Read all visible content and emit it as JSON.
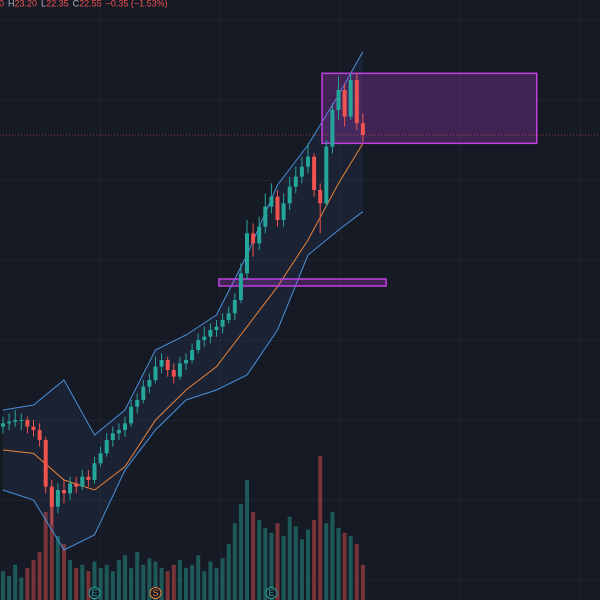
{
  "chart_data": {
    "type": "candlestick",
    "header": {
      "open_fragment": "0",
      "items": [
        {
          "label": "H",
          "value": "23.20"
        },
        {
          "label": "L",
          "value": "22.35"
        },
        {
          "label": "C",
          "value": "22.55"
        }
      ],
      "change": "−0.35 (−1.53%)"
    },
    "up_color": "#26a69a",
    "down_color": "#ef5350",
    "ylim": [
      8.6,
      26.6
    ],
    "ohlc": [
      [
        13.8,
        14.1,
        13.6,
        13.9
      ],
      [
        13.9,
        14.2,
        13.7,
        13.95
      ],
      [
        13.95,
        14.3,
        13.8,
        14.0
      ],
      [
        14.0,
        14.2,
        13.7,
        14.0
      ],
      [
        14.0,
        14.1,
        13.6,
        13.8
      ],
      [
        13.8,
        14.0,
        13.5,
        13.7
      ],
      [
        13.7,
        13.9,
        13.2,
        13.4
      ],
      [
        13.4,
        13.5,
        11.8,
        12.0
      ],
      [
        12.0,
        12.2,
        10.85,
        11.4
      ],
      [
        11.4,
        12.1,
        11.2,
        11.9
      ],
      [
        11.9,
        12.2,
        11.5,
        11.8
      ],
      [
        11.8,
        12.3,
        11.6,
        12.1
      ],
      [
        12.1,
        12.3,
        11.8,
        12.0
      ],
      [
        12.0,
        12.5,
        11.9,
        12.3
      ],
      [
        12.3,
        12.5,
        12.0,
        12.2
      ],
      [
        12.2,
        12.9,
        12.1,
        12.7
      ],
      [
        12.7,
        13.2,
        12.6,
        13.0
      ],
      [
        13.0,
        13.6,
        12.9,
        13.4
      ],
      [
        13.4,
        13.8,
        13.2,
        13.6
      ],
      [
        13.6,
        13.9,
        13.4,
        13.7
      ],
      [
        13.7,
        14.1,
        13.5,
        13.9
      ],
      [
        13.9,
        14.6,
        13.8,
        14.4
      ],
      [
        14.4,
        14.8,
        14.2,
        14.6
      ],
      [
        14.6,
        15.2,
        14.5,
        15.0
      ],
      [
        15.0,
        15.4,
        14.8,
        15.2
      ],
      [
        15.2,
        15.9,
        15.1,
        15.6
      ],
      [
        15.6,
        16.0,
        15.4,
        15.8
      ],
      [
        15.8,
        15.9,
        15.3,
        15.5
      ],
      [
        15.5,
        15.7,
        15.1,
        15.3
      ],
      [
        15.3,
        15.9,
        15.2,
        15.7
      ],
      [
        15.7,
        16.0,
        15.5,
        15.8
      ],
      [
        15.8,
        16.3,
        15.7,
        16.1
      ],
      [
        16.1,
        16.6,
        16.0,
        16.4
      ],
      [
        16.4,
        16.8,
        16.2,
        16.5
      ],
      [
        16.5,
        16.9,
        16.3,
        16.7
      ],
      [
        16.7,
        17.0,
        16.5,
        16.8
      ],
      [
        16.8,
        17.2,
        16.6,
        17.0
      ],
      [
        17.0,
        17.4,
        16.9,
        17.2
      ],
      [
        17.2,
        17.8,
        17.0,
        17.6
      ],
      [
        17.6,
        18.7,
        17.5,
        18.4
      ],
      [
        18.4,
        20.0,
        18.2,
        19.6
      ],
      [
        19.6,
        19.9,
        18.9,
        19.3
      ],
      [
        19.3,
        20.1,
        19.1,
        19.8
      ],
      [
        19.8,
        20.8,
        19.6,
        20.4
      ],
      [
        20.4,
        21.1,
        20.2,
        20.7
      ],
      [
        20.7,
        20.9,
        19.8,
        20.0
      ],
      [
        20.0,
        20.8,
        19.8,
        20.5
      ],
      [
        20.5,
        21.3,
        20.3,
        21.0
      ],
      [
        21.0,
        21.6,
        20.8,
        21.3
      ],
      [
        21.3,
        21.9,
        21.1,
        21.6
      ],
      [
        21.6,
        22.3,
        21.4,
        21.9
      ],
      [
        21.9,
        22.0,
        20.7,
        20.9
      ],
      [
        20.9,
        21.1,
        19.6,
        20.5
      ],
      [
        20.5,
        22.4,
        20.4,
        22.2
      ],
      [
        22.2,
        23.5,
        22.0,
        23.3
      ],
      [
        23.3,
        24.3,
        23.0,
        23.9
      ],
      [
        23.9,
        24.1,
        22.8,
        23.1
      ],
      [
        23.1,
        24.4,
        23.0,
        24.2
      ],
      [
        24.2,
        24.4,
        22.7,
        22.9
      ],
      [
        22.9,
        23.2,
        22.35,
        22.55
      ]
    ],
    "volume": [
      18,
      15,
      22,
      14,
      20,
      25,
      30,
      55,
      60,
      40,
      35,
      25,
      20,
      22,
      18,
      24,
      20,
      22,
      18,
      25,
      28,
      20,
      30,
      22,
      26,
      24,
      20,
      18,
      22,
      25,
      20,
      22,
      28,
      18,
      24,
      20,
      26,
      35,
      48,
      60,
      75,
      55,
      50,
      45,
      42,
      48,
      40,
      52,
      46,
      38,
      44,
      50,
      90,
      48,
      55,
      45,
      42,
      40,
      35,
      22
    ],
    "volume_lim": [
      0,
      100
    ],
    "bands": {
      "x": [
        0,
        5,
        10,
        15,
        20,
        25,
        30,
        35,
        40,
        45,
        50,
        55,
        59
      ],
      "upper": [
        14.3,
        14.45,
        15.2,
        13.55,
        14.3,
        16.1,
        16.55,
        17.15,
        18.95,
        21.05,
        22.25,
        23.75,
        25.05
      ],
      "middle": [
        13.1,
        13.0,
        12.2,
        11.9,
        12.6,
        14.0,
        14.9,
        15.6,
        16.8,
        18.0,
        19.4,
        21.1,
        22.3
      ],
      "lower": [
        11.9,
        11.6,
        10.1,
        10.55,
        12.5,
        13.7,
        14.6,
        14.9,
        15.35,
        16.7,
        18.95,
        19.7,
        20.25
      ],
      "band_color": "#4a8fd8",
      "middle_color": "#e8843a"
    },
    "zones": [
      {
        "x": [
          52.3,
          87.5
        ],
        "y": [
          22.3,
          24.4
        ],
        "color": "#c040e0"
      },
      {
        "x": [
          35.4,
          62.8
        ],
        "y": [
          18.02,
          18.23
        ],
        "color": "#c040e0"
      }
    ],
    "events": [
      {
        "index": 15,
        "label": "E",
        "color": "#26a69a"
      },
      {
        "index": 25,
        "label": "S",
        "color": "#e8843a"
      },
      {
        "index": 44,
        "label": "E",
        "color": "#26a69a"
      }
    ]
  }
}
